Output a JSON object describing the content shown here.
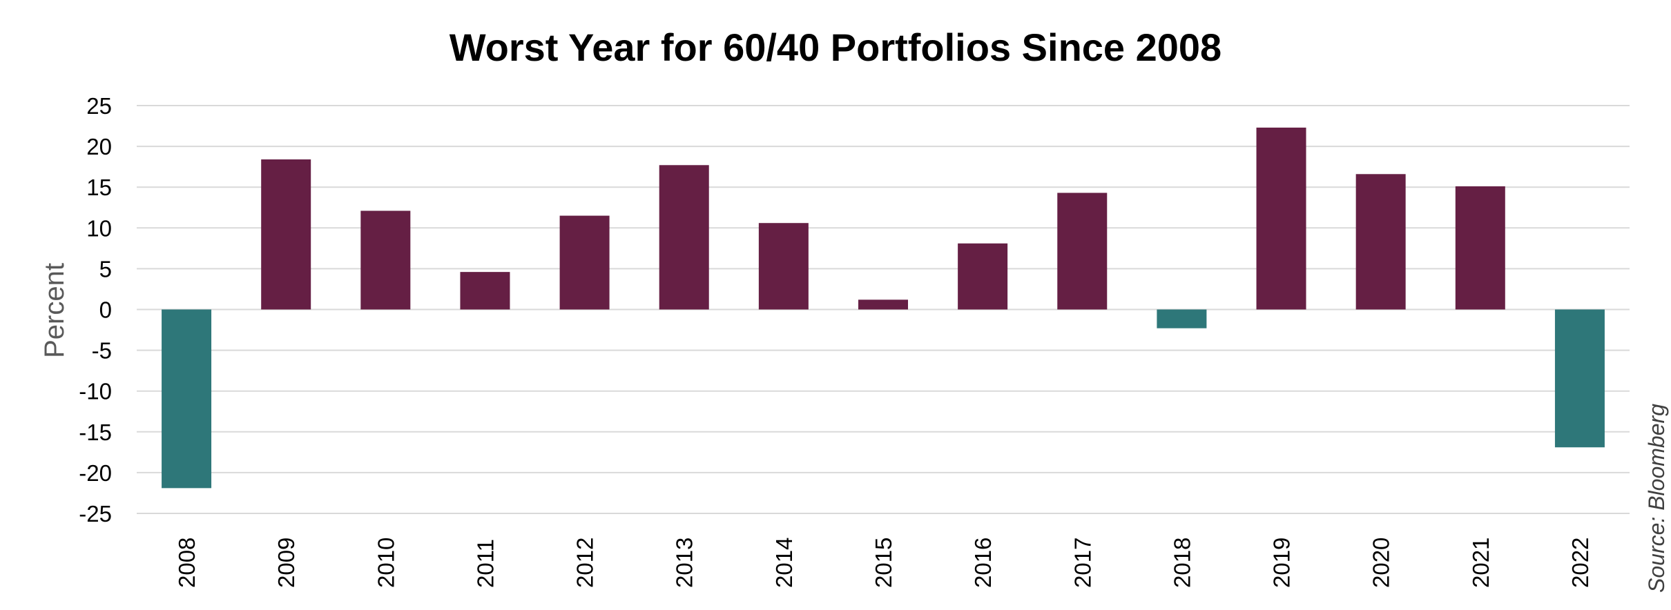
{
  "chart_data": {
    "type": "bar",
    "title": "Worst Year for 60/40 Portfolios Since 2008",
    "xlabel": "",
    "ylabel": "Percent",
    "source": "Source: Bloomberg",
    "categories": [
      "2008",
      "2009",
      "2010",
      "2011",
      "2012",
      "2013",
      "2014",
      "2015",
      "2016",
      "2017",
      "2018",
      "2019",
      "2020",
      "2021",
      "2022"
    ],
    "values": [
      -21.9,
      18.4,
      12.1,
      4.6,
      11.5,
      17.7,
      10.6,
      1.2,
      8.1,
      14.3,
      -2.3,
      22.3,
      16.6,
      15.1,
      -16.9
    ],
    "ylim": [
      -25,
      25
    ],
    "yticks": [
      "25",
      "20",
      "15",
      "10",
      "5",
      "0",
      "-5",
      "-10",
      "-15",
      "-20",
      "-25"
    ],
    "grid": true,
    "legend": "none",
    "colors": {
      "positive": "#651f44",
      "negative": "#2e7779",
      "grid": "#d9d9d9"
    }
  }
}
